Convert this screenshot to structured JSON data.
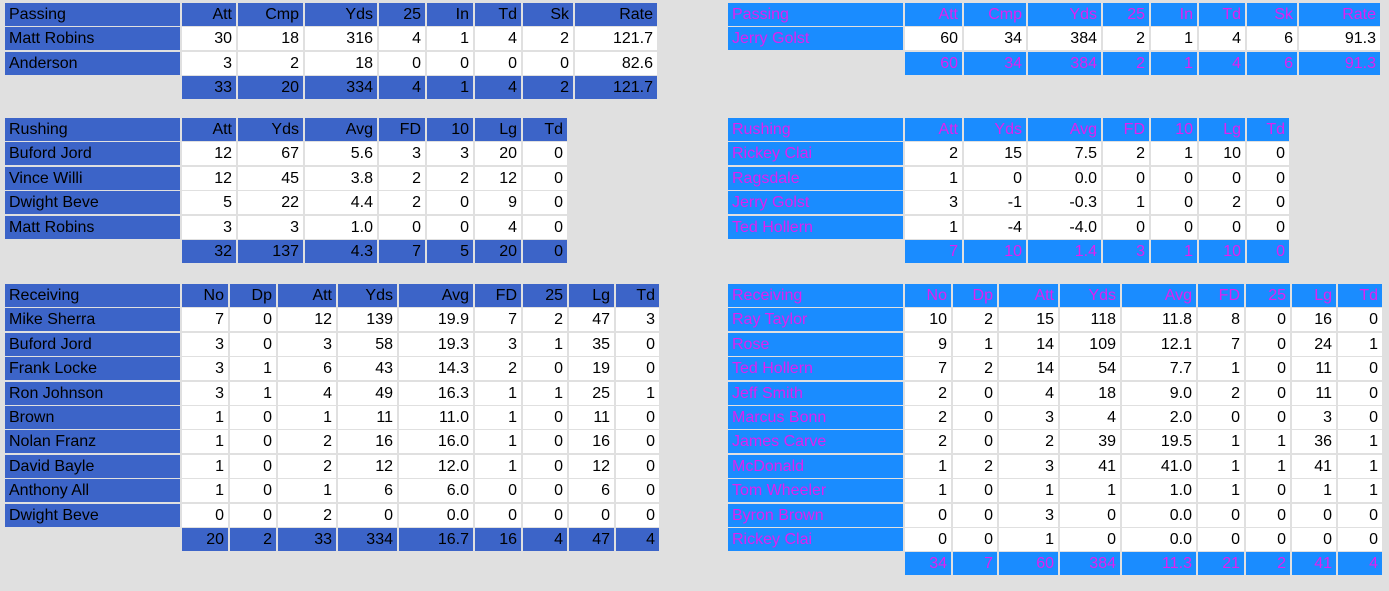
{
  "teams": [
    {
      "passing": {
        "header": [
          "Passing",
          "Att",
          "Cmp",
          "Yds",
          "25",
          "In",
          "Td",
          "Sk",
          "Rate"
        ],
        "rows": [
          [
            "Matt Robins",
            "30",
            "18",
            "316",
            "4",
            "1",
            "4",
            "2",
            "121.7"
          ],
          [
            "Anderson",
            "3",
            "2",
            "18",
            "0",
            "0",
            "0",
            "0",
            "82.6"
          ]
        ],
        "totals": [
          "33",
          "20",
          "334",
          "4",
          "1",
          "4",
          "2",
          "121.7"
        ]
      },
      "rushing": {
        "header": [
          "Rushing",
          "Att",
          "Yds",
          "Avg",
          "FD",
          "10",
          "Lg",
          "Td"
        ],
        "rows": [
          [
            "Buford Jord",
            "12",
            "67",
            "5.6",
            "3",
            "3",
            "20",
            "0"
          ],
          [
            "Vince Willi",
            "12",
            "45",
            "3.8",
            "2",
            "2",
            "12",
            "0"
          ],
          [
            "Dwight Beve",
            "5",
            "22",
            "4.4",
            "2",
            "0",
            "9",
            "0"
          ],
          [
            "Matt Robins",
            "3",
            "3",
            "1.0",
            "0",
            "0",
            "4",
            "0"
          ]
        ],
        "totals": [
          "32",
          "137",
          "4.3",
          "7",
          "5",
          "20",
          "0"
        ]
      },
      "receiving": {
        "header": [
          "Receiving",
          "No",
          "Dp",
          "Att",
          "Yds",
          "Avg",
          "FD",
          "25",
          "Lg",
          "Td"
        ],
        "rows": [
          [
            "Mike Sherra",
            "7",
            "0",
            "12",
            "139",
            "19.9",
            "7",
            "2",
            "47",
            "3"
          ],
          [
            "Buford Jord",
            "3",
            "0",
            "3",
            "58",
            "19.3",
            "3",
            "1",
            "35",
            "0"
          ],
          [
            "Frank Locke",
            "3",
            "1",
            "6",
            "43",
            "14.3",
            "2",
            "0",
            "19",
            "0"
          ],
          [
            "Ron Johnson",
            "3",
            "1",
            "4",
            "49",
            "16.3",
            "1",
            "1",
            "25",
            "1"
          ],
          [
            "Brown",
            "1",
            "0",
            "1",
            "11",
            "11.0",
            "1",
            "0",
            "11",
            "0"
          ],
          [
            "Nolan Franz",
            "1",
            "0",
            "2",
            "16",
            "16.0",
            "1",
            "0",
            "16",
            "0"
          ],
          [
            "David Bayle",
            "1",
            "0",
            "2",
            "12",
            "12.0",
            "1",
            "0",
            "12",
            "0"
          ],
          [
            "Anthony All",
            "1",
            "0",
            "1",
            "6",
            "6.0",
            "0",
            "0",
            "6",
            "0"
          ],
          [
            "Dwight Beve",
            "0",
            "0",
            "2",
            "0",
            "0.0",
            "0",
            "0",
            "0",
            "0"
          ]
        ],
        "totals": [
          "20",
          "2",
          "33",
          "334",
          "16.7",
          "16",
          "4",
          "47",
          "4"
        ]
      }
    },
    {
      "passing": {
        "header": [
          "Passing",
          "Att",
          "Cmp",
          "Yds",
          "25",
          "In",
          "Td",
          "Sk",
          "Rate"
        ],
        "rows": [
          [
            "Jerry Golst",
            "60",
            "34",
            "384",
            "2",
            "1",
            "4",
            "6",
            "91.3"
          ]
        ],
        "totals": [
          "60",
          "34",
          "384",
          "2",
          "1",
          "4",
          "6",
          "91.3"
        ]
      },
      "rushing": {
        "header": [
          "Rushing",
          "Att",
          "Yds",
          "Avg",
          "FD",
          "10",
          "Lg",
          "Td"
        ],
        "rows": [
          [
            "Rickey Clai",
            "2",
            "15",
            "7.5",
            "2",
            "1",
            "10",
            "0"
          ],
          [
            "Ragsdale",
            "1",
            "0",
            "0.0",
            "0",
            "0",
            "0",
            "0"
          ],
          [
            "Jerry Golst",
            "3",
            "-1",
            "-0.3",
            "1",
            "0",
            "2",
            "0"
          ],
          [
            "Ted Hollern",
            "1",
            "-4",
            "-4.0",
            "0",
            "0",
            "0",
            "0"
          ]
        ],
        "totals": [
          "7",
          "10",
          "1.4",
          "3",
          "1",
          "10",
          "0"
        ]
      },
      "receiving": {
        "header": [
          "Receiving",
          "No",
          "Dp",
          "Att",
          "Yds",
          "Avg",
          "FD",
          "25",
          "Lg",
          "Td"
        ],
        "rows": [
          [
            "Ray Taylor",
            "10",
            "2",
            "15",
            "118",
            "11.8",
            "8",
            "0",
            "16",
            "0"
          ],
          [
            "Rose",
            "9",
            "1",
            "14",
            "109",
            "12.1",
            "7",
            "0",
            "24",
            "1"
          ],
          [
            "Ted Hollern",
            "7",
            "2",
            "14",
            "54",
            "7.7",
            "1",
            "0",
            "11",
            "0"
          ],
          [
            "Jeff Smith",
            "2",
            "0",
            "4",
            "18",
            "9.0",
            "2",
            "0",
            "11",
            "0"
          ],
          [
            "Marcus Bonn",
            "2",
            "0",
            "3",
            "4",
            "2.0",
            "0",
            "0",
            "3",
            "0"
          ],
          [
            "James Carve",
            "2",
            "0",
            "2",
            "39",
            "19.5",
            "1",
            "1",
            "36",
            "1"
          ],
          [
            "McDonald",
            "1",
            "2",
            "3",
            "41",
            "41.0",
            "1",
            "1",
            "41",
            "1"
          ],
          [
            "Tom Wheeler",
            "1",
            "0",
            "1",
            "1",
            "1.0",
            "1",
            "0",
            "1",
            "1"
          ],
          [
            "Byron Brown",
            "0",
            "0",
            "3",
            "0",
            "0.0",
            "0",
            "0",
            "0",
            "0"
          ],
          [
            "Rickey Clai",
            "0",
            "0",
            "1",
            "0",
            "0.0",
            "0",
            "0",
            "0",
            "0"
          ]
        ],
        "totals": [
          "34",
          "7",
          "60",
          "384",
          "11.3",
          "21",
          "2",
          "41",
          "4"
        ]
      }
    }
  ]
}
